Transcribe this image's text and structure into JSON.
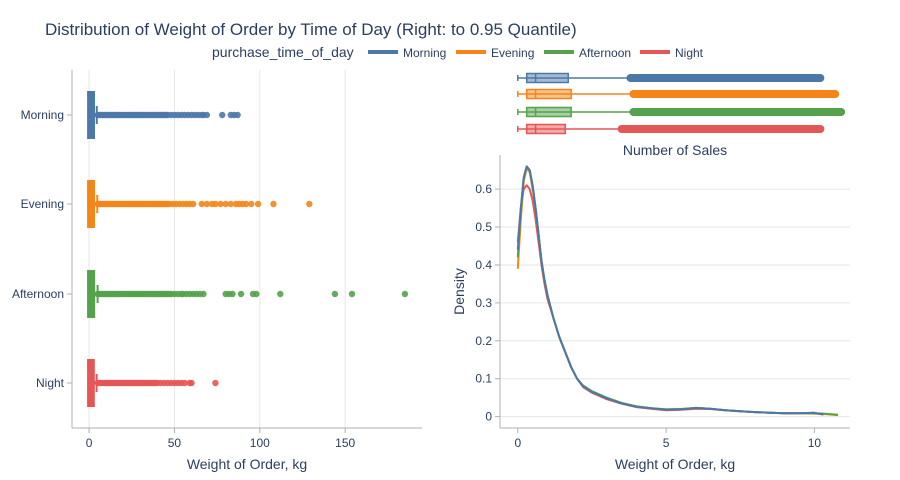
{
  "title": "Distribution of Weight of Order by Time of Day (Right: to 0.95 Quantile)",
  "legend": {
    "title": "purchase_time_of_day",
    "position": "top-center",
    "items": [
      {
        "label": "Morning",
        "color": "#4c78a8"
      },
      {
        "label": "Evening",
        "color": "#f58518"
      },
      {
        "label": "Afternoon",
        "color": "#54a24b"
      },
      {
        "label": "Night",
        "color": "#e45756"
      }
    ]
  },
  "chart_data": [
    {
      "type": "box",
      "orientation": "horizontal",
      "categories": [
        "Morning",
        "Evening",
        "Afternoon",
        "Night"
      ],
      "xlabel": "Weight of Order, kg",
      "ylabel": "",
      "xlim": [
        -10,
        195
      ],
      "xticks": [
        0,
        50,
        100,
        150
      ],
      "grid": true,
      "series": [
        {
          "name": "Morning",
          "color": "#4c78a8",
          "q1": 0.3,
          "median": 0.5,
          "q3": 2.0,
          "whisker_low": 0,
          "whisker_high": 4.5,
          "outliers": [
            5,
            6,
            7,
            8,
            9,
            10,
            11,
            12,
            13,
            14,
            15,
            16,
            17,
            18,
            19,
            20,
            21,
            22,
            23,
            24,
            25,
            26,
            27,
            28,
            29,
            30,
            31,
            32,
            33,
            34,
            35,
            36,
            37,
            38,
            39,
            40,
            41,
            42,
            43,
            44,
            45,
            46,
            48,
            50,
            52,
            54,
            56,
            58,
            60,
            62,
            64,
            66,
            67,
            69,
            78,
            83,
            85,
            87
          ]
        },
        {
          "name": "Evening",
          "color": "#f58518",
          "q1": 0.3,
          "median": 0.5,
          "q3": 2.0,
          "whisker_low": 0,
          "whisker_high": 4.8,
          "outliers": [
            5,
            6,
            7,
            8,
            9,
            10,
            11,
            12,
            13,
            14,
            15,
            16,
            17,
            18,
            19,
            20,
            21,
            22,
            23,
            24,
            25,
            26,
            27,
            28,
            29,
            30,
            31,
            32,
            33,
            34,
            35,
            36,
            37,
            38,
            39,
            40,
            41,
            42,
            43,
            44,
            45,
            46,
            47,
            49,
            51,
            53,
            55,
            57,
            59,
            61,
            66,
            69,
            72,
            74,
            77,
            80,
            83,
            86,
            88,
            90,
            92,
            95,
            99,
            108,
            129
          ]
        },
        {
          "name": "Afternoon",
          "color": "#54a24b",
          "q1": 0.3,
          "median": 0.5,
          "q3": 2.1,
          "whisker_low": 0,
          "whisker_high": 5.0,
          "outliers": [
            5,
            6,
            7,
            8,
            9,
            10,
            11,
            12,
            13,
            14,
            15,
            16,
            17,
            18,
            19,
            20,
            21,
            22,
            23,
            24,
            25,
            26,
            27,
            28,
            29,
            30,
            31,
            32,
            33,
            34,
            35,
            36,
            37,
            38,
            39,
            40,
            41,
            42,
            43,
            44,
            45,
            46,
            47,
            48,
            50,
            52,
            54,
            55,
            57,
            59,
            61,
            63,
            65,
            67,
            80,
            82,
            84,
            89,
            96,
            98,
            112,
            144,
            154,
            185
          ]
        },
        {
          "name": "Night",
          "color": "#e45756",
          "q1": 0.3,
          "median": 0.5,
          "q3": 1.9,
          "whisker_low": 0,
          "whisker_high": 4.4,
          "outliers": [
            5,
            6,
            7,
            8,
            9,
            10,
            11,
            12,
            13,
            14,
            15,
            16,
            17,
            18,
            19,
            20,
            21,
            22,
            23,
            24,
            25,
            26,
            27,
            28,
            29,
            30,
            31,
            32,
            33,
            34,
            35,
            36,
            37,
            38,
            39,
            40,
            42,
            44,
            46,
            48,
            50,
            52,
            54,
            56,
            59,
            60,
            74
          ]
        }
      ]
    },
    {
      "type": "box",
      "orientation": "horizontal",
      "categories": [
        "Morning",
        "Evening",
        "Afternoon",
        "Night"
      ],
      "xlim": [
        -0.6,
        11.2
      ],
      "grid": false,
      "series": [
        {
          "name": "Morning",
          "color": "#4c78a8",
          "whisker_low": 0.0,
          "q1": 0.3,
          "median": 0.6,
          "q3": 1.7,
          "whisker_high": 3.7,
          "outlier_min": 3.8,
          "outlier_max": 10.2
        },
        {
          "name": "Evening",
          "color": "#f58518",
          "whisker_low": 0.0,
          "q1": 0.3,
          "median": 0.6,
          "q3": 1.8,
          "whisker_high": 3.8,
          "outlier_min": 3.9,
          "outlier_max": 10.7
        },
        {
          "name": "Afternoon",
          "color": "#54a24b",
          "whisker_low": 0.0,
          "q1": 0.3,
          "median": 0.6,
          "q3": 1.8,
          "whisker_high": 3.8,
          "outlier_min": 3.9,
          "outlier_max": 10.9
        },
        {
          "name": "Night",
          "color": "#e45756",
          "whisker_low": 0.0,
          "q1": 0.3,
          "median": 0.6,
          "q3": 1.6,
          "whisker_high": 3.5,
          "outlier_min": 3.5,
          "outlier_max": 10.2
        }
      ]
    },
    {
      "type": "line",
      "title": "Number of Sales",
      "xlabel": "Weight of Order, kg",
      "ylabel": "Density",
      "xlim": [
        -0.6,
        11.2
      ],
      "ylim": [
        -0.03,
        0.69
      ],
      "xticks": [
        0,
        5,
        10
      ],
      "yticks": [
        0,
        0.1,
        0.2,
        0.3,
        0.4,
        0.5,
        0.6
      ],
      "grid": true,
      "x": [
        0,
        0.1,
        0.2,
        0.3,
        0.4,
        0.5,
        0.6,
        0.7,
        0.8,
        0.9,
        1.0,
        1.2,
        1.4,
        1.6,
        1.8,
        2.0,
        2.2,
        2.5,
        3.0,
        3.5,
        4.0,
        4.5,
        5.0,
        5.5,
        6.0,
        6.5,
        7.0,
        7.5,
        8.0,
        8.5,
        9.0,
        9.5,
        10.0,
        10.3,
        10.8
      ],
      "series": [
        {
          "name": "Morning",
          "color": "#4c78a8",
          "values": [
            0.44,
            0.55,
            0.63,
            0.66,
            0.65,
            0.61,
            0.55,
            0.48,
            0.41,
            0.36,
            0.32,
            0.26,
            0.21,
            0.17,
            0.13,
            0.1,
            0.08,
            0.065,
            0.048,
            0.035,
            0.026,
            0.022,
            0.018,
            0.019,
            0.023,
            0.021,
            0.017,
            0.014,
            0.012,
            0.01,
            0.009,
            0.009,
            0.01,
            0.006,
            null
          ]
        },
        {
          "name": "Evening",
          "color": "#f58518",
          "values": [
            0.39,
            0.52,
            0.62,
            0.655,
            0.645,
            0.6,
            0.55,
            0.48,
            0.41,
            0.36,
            0.32,
            0.26,
            0.21,
            0.17,
            0.13,
            0.1,
            0.08,
            0.065,
            0.049,
            0.036,
            0.027,
            0.022,
            0.019,
            0.02,
            0.022,
            0.02,
            0.017,
            0.014,
            0.012,
            0.01,
            0.009,
            0.009,
            0.008,
            0.007,
            0.004
          ]
        },
        {
          "name": "Afternoon",
          "color": "#54a24b",
          "values": [
            0.42,
            0.54,
            0.63,
            0.66,
            0.65,
            0.61,
            0.55,
            0.48,
            0.41,
            0.36,
            0.32,
            0.26,
            0.21,
            0.17,
            0.13,
            0.1,
            0.082,
            0.067,
            0.05,
            0.036,
            0.027,
            0.022,
            0.019,
            0.02,
            0.023,
            0.021,
            0.017,
            0.014,
            0.012,
            0.01,
            0.009,
            0.009,
            0.009,
            0.008,
            0.005
          ]
        },
        {
          "name": "Night",
          "color": "#e45756",
          "values": [
            0.46,
            0.55,
            0.6,
            0.61,
            0.6,
            0.57,
            0.52,
            0.46,
            0.4,
            0.35,
            0.31,
            0.26,
            0.21,
            0.17,
            0.13,
            0.1,
            0.078,
            0.063,
            0.046,
            0.034,
            0.025,
            0.021,
            0.017,
            0.018,
            0.021,
            0.02,
            0.017,
            0.014,
            0.012,
            0.01,
            0.009,
            0.009,
            0.01,
            0.005,
            null
          ]
        }
      ]
    }
  ]
}
